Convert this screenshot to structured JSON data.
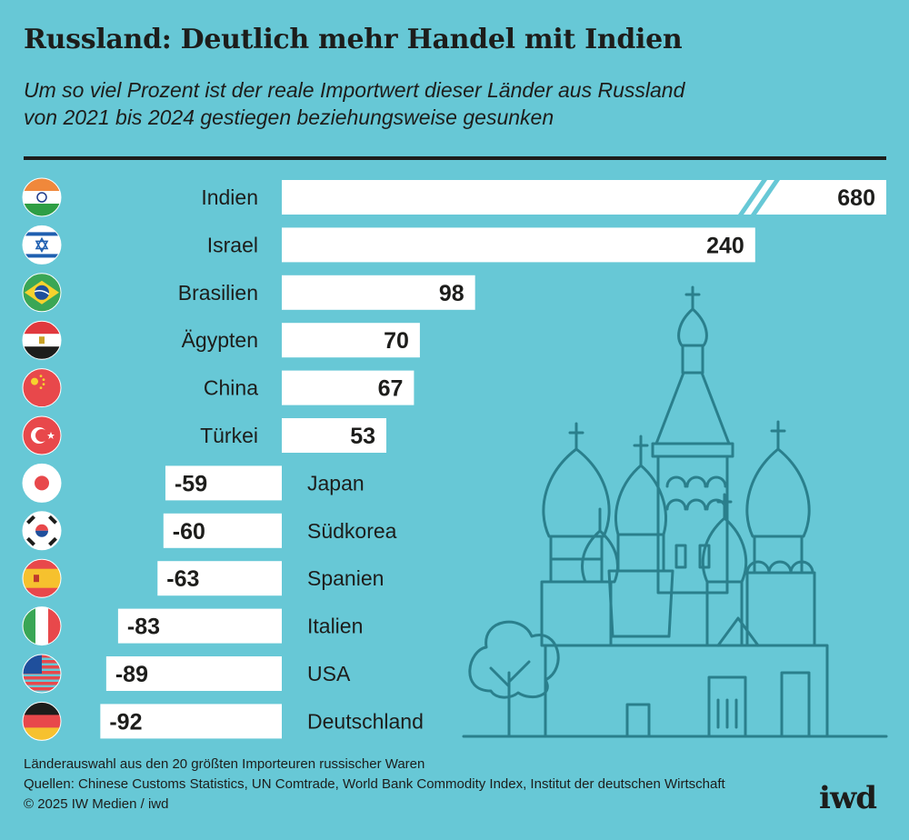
{
  "title": "Russland: Deutlich mehr Handel mit Indien",
  "subtitle_line1": "Um so viel Prozent ist der reale Importwert dieser Länder aus Russland",
  "subtitle_line2": "von 2021 bis 2024 gestiegen beziehungsweise gesunken",
  "footer": {
    "note": "Länderauswahl aus den 20 größten Importeuren russischer Waren",
    "sources": "Quellen: Chinese Customs Statistics, UN Comtrade, World Bank Commodity Index, Institut der deutschen Wirtschaft",
    "copyright": "© 2025 IW Medien / iwd"
  },
  "logo": "iwd",
  "colors": {
    "background": "#67c8d6",
    "bar": "#ffffff",
    "text": "#1d1d1b",
    "illustration": "#2a7f8c"
  },
  "chart_data": {
    "type": "bar",
    "orientation": "horizontal",
    "categories": [
      "Indien",
      "Israel",
      "Brasilien",
      "Ägypten",
      "China",
      "Türkei",
      "Japan",
      "Südkorea",
      "Spanien",
      "Italien",
      "USA",
      "Deutschland"
    ],
    "values": [
      680,
      240,
      98,
      70,
      67,
      53,
      -59,
      -60,
      -63,
      -83,
      -89,
      -92
    ],
    "value_labels": [
      "680",
      "240",
      "98",
      "70",
      "67",
      "53",
      "-59",
      "-60",
      "-63",
      "-83",
      "-89",
      "-92"
    ],
    "flag_icons": [
      "india-flag-icon",
      "israel-flag-icon",
      "brazil-flag-icon",
      "egypt-flag-icon",
      "china-flag-icon",
      "turkey-flag-icon",
      "japan-flag-icon",
      "south-korea-flag-icon",
      "spain-flag-icon",
      "italy-flag-icon",
      "usa-flag-icon",
      "germany-flag-icon"
    ],
    "axis_break": "Indien",
    "unit": "percent",
    "grid": false,
    "legend": "none"
  }
}
